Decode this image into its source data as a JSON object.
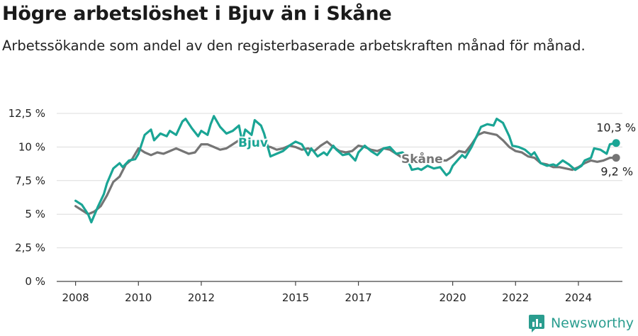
{
  "title": "Högre arbetslöshet i Bjuv än i Skåne",
  "subtitle": "Arbetssökande som andel av den registerbaserade arbetskraften månad för månad.",
  "brand": "Newsworthy",
  "colors": {
    "bjuv": "#1aa595",
    "skane": "#757575",
    "grid": "#dcdcdc",
    "axis": "#444444",
    "text": "#222222"
  },
  "chart_data": {
    "type": "line",
    "title": "Högre arbetslöshet i Bjuv än i Skåne",
    "ylabel": "",
    "xlabel": "",
    "ylim": [
      0,
      12.5
    ],
    "xlim": [
      2007.4,
      2025.4
    ],
    "y_ticks": [
      0,
      2.5,
      5,
      7.5,
      10,
      12.5
    ],
    "y_tick_labels": [
      "0 %",
      "2,5 %",
      "5 %",
      "7,5 %",
      "10 %",
      "12,5 %"
    ],
    "x_ticks": [
      2008,
      2010,
      2012,
      2015,
      2017,
      2020,
      2022,
      2024
    ],
    "x_tick_labels": [
      "2008",
      "2010",
      "2012",
      "2015",
      "2017",
      "2020",
      "2022",
      "2024"
    ],
    "grid": true,
    "series": [
      {
        "name": "Bjuv",
        "end_label": "10,3 %",
        "points": [
          [
            2008.0,
            6.0
          ],
          [
            2008.2,
            5.7
          ],
          [
            2008.4,
            5.0
          ],
          [
            2008.5,
            4.4
          ],
          [
            2008.7,
            5.5
          ],
          [
            2008.9,
            6.5
          ],
          [
            2009.0,
            7.3
          ],
          [
            2009.2,
            8.4
          ],
          [
            2009.4,
            8.8
          ],
          [
            2009.5,
            8.5
          ],
          [
            2009.7,
            9.0
          ],
          [
            2009.9,
            9.1
          ],
          [
            2010.0,
            9.5
          ],
          [
            2010.2,
            10.9
          ],
          [
            2010.4,
            11.3
          ],
          [
            2010.5,
            10.5
          ],
          [
            2010.7,
            11.0
          ],
          [
            2010.9,
            10.8
          ],
          [
            2011.0,
            11.2
          ],
          [
            2011.2,
            10.9
          ],
          [
            2011.4,
            11.9
          ],
          [
            2011.5,
            12.1
          ],
          [
            2011.7,
            11.4
          ],
          [
            2011.9,
            10.8
          ],
          [
            2012.0,
            11.2
          ],
          [
            2012.2,
            10.9
          ],
          [
            2012.3,
            11.7
          ],
          [
            2012.4,
            12.3
          ],
          [
            2012.6,
            11.5
          ],
          [
            2012.8,
            11.0
          ],
          [
            2013.0,
            11.2
          ],
          [
            2013.2,
            11.6
          ],
          [
            2013.3,
            10.4
          ],
          [
            2013.4,
            11.3
          ],
          [
            2013.6,
            10.9
          ],
          [
            2013.7,
            12.0
          ],
          [
            2013.9,
            11.6
          ],
          [
            2014.0,
            11.0
          ],
          [
            2014.2,
            9.3
          ],
          [
            2014.4,
            9.5
          ],
          [
            2014.6,
            9.7
          ],
          [
            2014.8,
            10.1
          ],
          [
            2015.0,
            10.4
          ],
          [
            2015.2,
            10.2
          ],
          [
            2015.4,
            9.4
          ],
          [
            2015.5,
            9.9
          ],
          [
            2015.7,
            9.3
          ],
          [
            2015.9,
            9.6
          ],
          [
            2016.0,
            9.4
          ],
          [
            2016.2,
            10.1
          ],
          [
            2016.3,
            9.8
          ],
          [
            2016.5,
            9.4
          ],
          [
            2016.7,
            9.5
          ],
          [
            2016.9,
            9.0
          ],
          [
            2017.0,
            9.6
          ],
          [
            2017.2,
            10.1
          ],
          [
            2017.4,
            9.7
          ],
          [
            2017.6,
            9.4
          ],
          [
            2017.8,
            9.9
          ],
          [
            2018.0,
            10.0
          ],
          [
            2018.2,
            9.5
          ],
          [
            2018.4,
            9.6
          ],
          [
            2018.5,
            9.4
          ],
          [
            2018.7,
            8.3
          ],
          [
            2018.9,
            8.4
          ],
          [
            2019.0,
            8.3
          ],
          [
            2019.2,
            8.6
          ],
          [
            2019.4,
            8.4
          ],
          [
            2019.6,
            8.5
          ],
          [
            2019.8,
            7.9
          ],
          [
            2019.9,
            8.1
          ],
          [
            2020.0,
            8.6
          ],
          [
            2020.3,
            9.4
          ],
          [
            2020.4,
            9.2
          ],
          [
            2020.6,
            10.0
          ],
          [
            2020.8,
            11.0
          ],
          [
            2020.9,
            11.5
          ],
          [
            2021.1,
            11.7
          ],
          [
            2021.3,
            11.6
          ],
          [
            2021.4,
            12.1
          ],
          [
            2021.6,
            11.8
          ],
          [
            2021.8,
            10.8
          ],
          [
            2021.9,
            10.1
          ],
          [
            2022.1,
            10.0
          ],
          [
            2022.3,
            9.8
          ],
          [
            2022.5,
            9.4
          ],
          [
            2022.6,
            9.6
          ],
          [
            2022.8,
            8.8
          ],
          [
            2023.0,
            8.6
          ],
          [
            2023.2,
            8.7
          ],
          [
            2023.3,
            8.6
          ],
          [
            2023.5,
            9.0
          ],
          [
            2023.7,
            8.7
          ],
          [
            2023.9,
            8.3
          ],
          [
            2024.1,
            8.6
          ],
          [
            2024.2,
            9.0
          ],
          [
            2024.4,
            9.2
          ],
          [
            2024.5,
            9.9
          ],
          [
            2024.7,
            9.8
          ],
          [
            2024.9,
            9.5
          ],
          [
            2025.0,
            10.2
          ],
          [
            2025.2,
            10.3
          ]
        ]
      },
      {
        "name": "Skåne",
        "end_label": "9,2 %",
        "points": [
          [
            2008.0,
            5.6
          ],
          [
            2008.2,
            5.3
          ],
          [
            2008.4,
            5.0
          ],
          [
            2008.6,
            5.2
          ],
          [
            2008.8,
            5.6
          ],
          [
            2009.0,
            6.4
          ],
          [
            2009.2,
            7.4
          ],
          [
            2009.4,
            7.8
          ],
          [
            2009.6,
            8.7
          ],
          [
            2009.8,
            9.1
          ],
          [
            2010.0,
            9.9
          ],
          [
            2010.2,
            9.6
          ],
          [
            2010.4,
            9.4
          ],
          [
            2010.6,
            9.6
          ],
          [
            2010.8,
            9.5
          ],
          [
            2011.0,
            9.7
          ],
          [
            2011.2,
            9.9
          ],
          [
            2011.4,
            9.7
          ],
          [
            2011.6,
            9.5
          ],
          [
            2011.8,
            9.6
          ],
          [
            2012.0,
            10.2
          ],
          [
            2012.2,
            10.2
          ],
          [
            2012.4,
            10.0
          ],
          [
            2012.6,
            9.8
          ],
          [
            2012.8,
            9.9
          ],
          [
            2013.0,
            10.2
          ],
          [
            2013.2,
            10.5
          ],
          [
            2013.4,
            10.3
          ],
          [
            2013.6,
            10.1
          ],
          [
            2013.8,
            10.3
          ],
          [
            2014.0,
            10.1
          ],
          [
            2014.2,
            10.0
          ],
          [
            2014.4,
            9.8
          ],
          [
            2014.6,
            9.9
          ],
          [
            2014.8,
            10.1
          ],
          [
            2015.0,
            10.0
          ],
          [
            2015.2,
            9.8
          ],
          [
            2015.4,
            9.9
          ],
          [
            2015.6,
            9.7
          ],
          [
            2015.8,
            10.1
          ],
          [
            2016.0,
            10.4
          ],
          [
            2016.2,
            10.0
          ],
          [
            2016.4,
            9.7
          ],
          [
            2016.6,
            9.6
          ],
          [
            2016.8,
            9.7
          ],
          [
            2017.0,
            10.1
          ],
          [
            2017.2,
            10.0
          ],
          [
            2017.4,
            9.8
          ],
          [
            2017.6,
            9.7
          ],
          [
            2017.8,
            9.9
          ],
          [
            2018.0,
            9.8
          ],
          [
            2018.2,
            9.5
          ],
          [
            2018.4,
            9.2
          ],
          [
            2018.6,
            9.0
          ],
          [
            2018.8,
            9.1
          ],
          [
            2019.0,
            9.0
          ],
          [
            2019.2,
            8.9
          ],
          [
            2019.4,
            9.1
          ],
          [
            2019.6,
            9.0
          ],
          [
            2019.8,
            9.0
          ],
          [
            2020.0,
            9.3
          ],
          [
            2020.2,
            9.7
          ],
          [
            2020.4,
            9.6
          ],
          [
            2020.6,
            10.2
          ],
          [
            2020.8,
            10.9
          ],
          [
            2021.0,
            11.1
          ],
          [
            2021.2,
            11.0
          ],
          [
            2021.4,
            10.9
          ],
          [
            2021.6,
            10.5
          ],
          [
            2021.8,
            10.0
          ],
          [
            2022.0,
            9.7
          ],
          [
            2022.2,
            9.6
          ],
          [
            2022.4,
            9.3
          ],
          [
            2022.6,
            9.2
          ],
          [
            2022.8,
            8.8
          ],
          [
            2023.0,
            8.7
          ],
          [
            2023.2,
            8.5
          ],
          [
            2023.4,
            8.5
          ],
          [
            2023.6,
            8.4
          ],
          [
            2023.8,
            8.3
          ],
          [
            2024.0,
            8.5
          ],
          [
            2024.2,
            8.8
          ],
          [
            2024.4,
            9.0
          ],
          [
            2024.6,
            8.9
          ],
          [
            2024.8,
            9.0
          ],
          [
            2025.0,
            9.2
          ],
          [
            2025.2,
            9.2
          ]
        ]
      }
    ]
  }
}
